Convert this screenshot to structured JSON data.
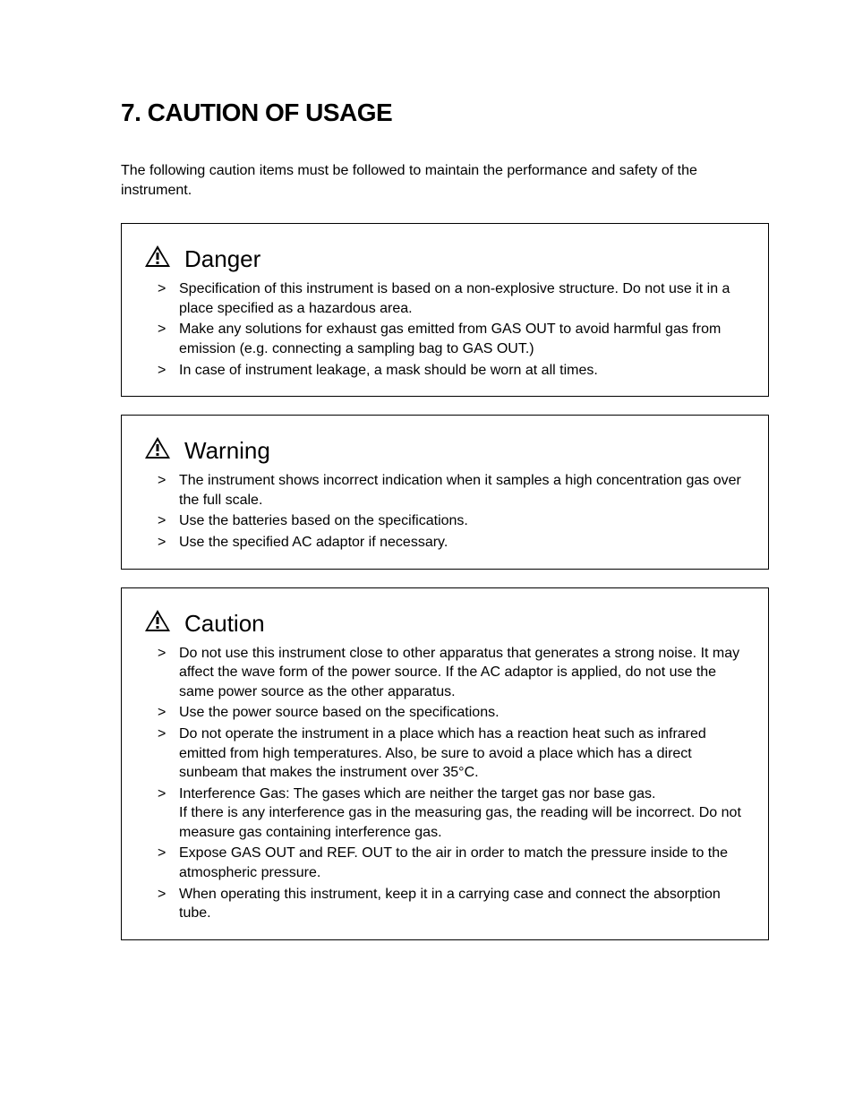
{
  "title": "7. CAUTION OF USAGE",
  "intro": "The following caution items must be followed to maintain the performance and safety of the instrument.",
  "sections": [
    {
      "heading": "Danger",
      "items": [
        "Specification of this instrument is based on a non-explosive structure. Do not use it in a place specified as a hazardous area.",
        "Make any solutions for exhaust gas emitted from GAS OUT to avoid harmful gas from emission (e.g. connecting a sampling bag to GAS OUT.)",
        "In case of instrument leakage, a mask should be worn at all times."
      ]
    },
    {
      "heading": "Warning",
      "items": [
        "The instrument shows incorrect indication when it samples a high concentration gas over the full scale.",
        "Use the batteries based on the specifications.",
        "Use the specified AC adaptor if necessary."
      ]
    },
    {
      "heading": "Caution",
      "items": [
        "Do not use this instrument close to other apparatus that generates a strong noise. It may affect the wave form of the power source. If the AC adaptor is applied, do not use the same power source as the other apparatus.",
        "Use the power source based on the specifications.",
        "Do not operate the instrument in a place which has a reaction heat such as infrared emitted from high temperatures. Also, be sure to avoid a place which has a direct sunbeam that makes the instrument over 35°C.",
        "Interference Gas: The gases which are neither the target gas nor base gas.\nIf there is any interference gas in the measuring gas, the reading will be incorrect. Do not measure gas containing interference gas.",
        "Expose GAS OUT and REF. OUT to the air in order to match the pressure inside to the atmospheric pressure.",
        "When operating this instrument, keep it in a carrying case and connect the absorption tube."
      ]
    }
  ],
  "styles": {
    "page_background": "#ffffff",
    "text_color": "#000000",
    "border_color": "#000000",
    "title_fontsize": 28,
    "box_title_fontsize": 26,
    "body_fontsize": 16,
    "icon_fill": "#000000"
  }
}
